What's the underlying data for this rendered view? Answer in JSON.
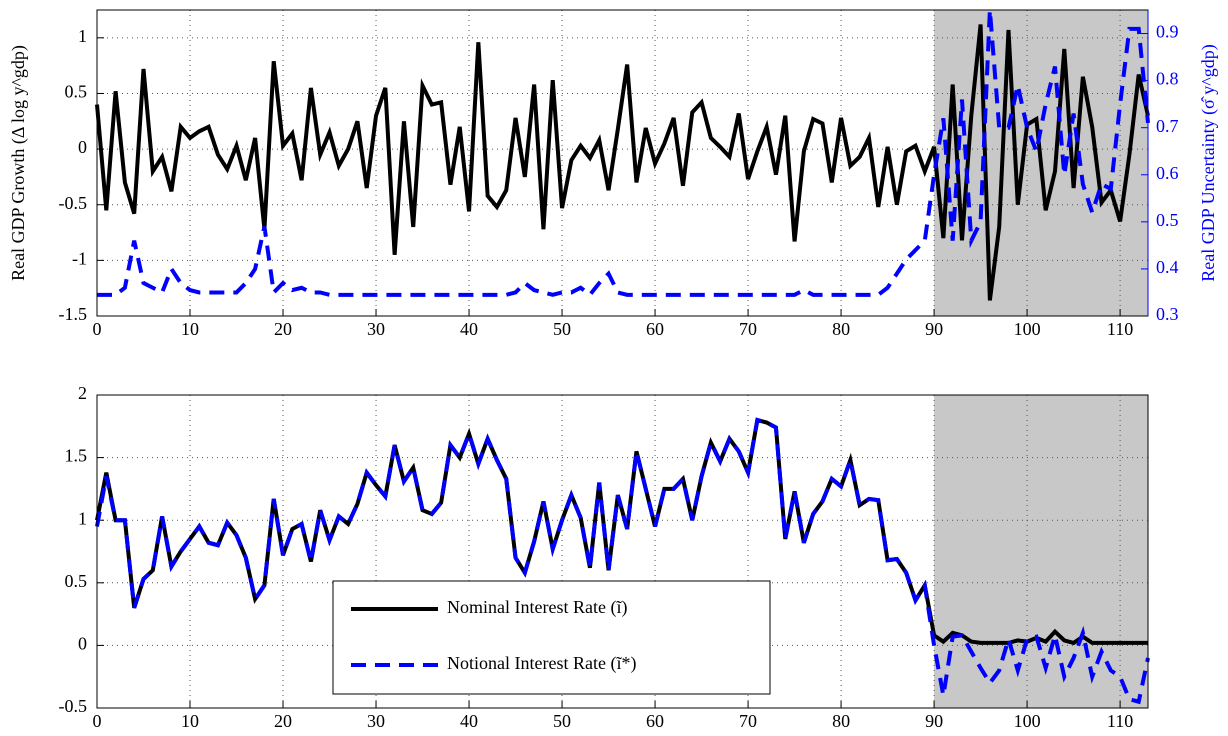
{
  "chart_data": [
    {
      "type": "line",
      "y_label": "Real GDP Growth (Δ log y^gdp)",
      "y2_label": "Real GDP Uncertainty (σ̂ y^gdp)",
      "x": [
        0,
        1,
        2,
        3,
        4,
        5,
        6,
        7,
        8,
        9,
        10,
        11,
        12,
        13,
        14,
        15,
        16,
        17,
        18,
        19,
        20,
        21,
        22,
        23,
        24,
        25,
        26,
        27,
        28,
        29,
        30,
        31,
        32,
        33,
        34,
        35,
        36,
        37,
        38,
        39,
        40,
        41,
        42,
        43,
        44,
        45,
        46,
        47,
        48,
        49,
        50,
        51,
        52,
        53,
        54,
        55,
        56,
        57,
        58,
        59,
        60,
        61,
        62,
        63,
        64,
        65,
        66,
        67,
        68,
        69,
        70,
        71,
        72,
        73,
        74,
        75,
        76,
        77,
        78,
        79,
        80,
        81,
        82,
        83,
        84,
        85,
        86,
        87,
        88,
        89,
        90,
        91,
        92,
        93,
        94,
        95,
        96,
        97,
        98,
        99,
        100,
        101,
        102,
        103,
        104,
        105,
        106,
        107,
        108,
        109,
        110,
        111,
        112,
        113
      ],
      "xlim": [
        0,
        113
      ],
      "xticks": [
        0,
        10,
        20,
        30,
        40,
        50,
        60,
        70,
        80,
        90,
        100,
        110
      ],
      "ylim": [
        -1.5,
        1.25
      ],
      "yticks": [
        -1.5,
        -1,
        -0.5,
        0,
        0.5,
        1
      ],
      "y2lim": [
        0.3,
        0.95
      ],
      "y2ticks": [
        0.3,
        0.4,
        0.5,
        0.6,
        0.7,
        0.8,
        0.9
      ],
      "y2_color": "#0000ff",
      "grid": true,
      "shaded_region": {
        "xlim": [
          90,
          113
        ],
        "color": "#c8c8c8"
      },
      "series": [
        {
          "color": "#000000",
          "dash": false,
          "values": [
            0.4,
            -0.55,
            0.52,
            -0.3,
            -0.58,
            0.72,
            -0.2,
            -0.07,
            -0.38,
            0.2,
            0.1,
            0.16,
            0.2,
            -0.05,
            -0.18,
            0.03,
            -0.28,
            0.1,
            -0.72,
            0.79,
            0.03,
            0.14,
            -0.28,
            0.55,
            -0.05,
            0.15,
            -0.15,
            0,
            0.25,
            -0.35,
            0.3,
            0.55,
            -0.95,
            0.25,
            -0.7,
            0.57,
            0.4,
            0.42,
            -0.32,
            0.2,
            -0.56,
            0.96,
            -0.42,
            -0.52,
            -0.37,
            0.28,
            -0.25,
            0.58,
            -0.72,
            0.62,
            -0.53,
            -0.1,
            0.03,
            -0.08,
            0.08,
            -0.37,
            0.18,
            0.76,
            -0.3,
            0.19,
            -0.13,
            0.05,
            0.28,
            -0.33,
            0.33,
            0.42,
            0.1,
            0.02,
            -0.07,
            0.32,
            -0.27,
            -0.02,
            0.2,
            -0.23,
            0.3,
            -0.83,
            -0.02,
            0.27,
            0.23,
            -0.3,
            0.28,
            -0.15,
            -0.07,
            0.1,
            -0.52,
            0.02,
            -0.5,
            -0.02,
            0.03,
            -0.2,
            0.02,
            -0.8,
            0.58,
            -0.82,
            0.3,
            1.12,
            -1.36,
            -0.7,
            1.07,
            -0.5,
            0.22,
            0.27,
            -0.55,
            -0.2,
            0.9,
            -0.35,
            0.65,
            0.2,
            -0.48,
            -0.37,
            -0.65,
            -0.05,
            0.67,
            0.3
          ]
        },
        {
          "color": "#0000ff",
          "dash": true,
          "axis": "y2",
          "values": [
            0.345,
            0.345,
            0.345,
            0.36,
            0.46,
            0.37,
            0.36,
            0.35,
            0.4,
            0.37,
            0.355,
            0.35,
            0.35,
            0.35,
            0.35,
            0.35,
            0.37,
            0.4,
            0.49,
            0.35,
            0.37,
            0.355,
            0.36,
            0.35,
            0.35,
            0.345,
            0.345,
            0.345,
            0.345,
            0.345,
            0.345,
            0.345,
            0.345,
            0.345,
            0.345,
            0.345,
            0.345,
            0.345,
            0.345,
            0.345,
            0.345,
            0.345,
            0.345,
            0.345,
            0.345,
            0.35,
            0.37,
            0.355,
            0.35,
            0.345,
            0.35,
            0.35,
            0.36,
            0.345,
            0.37,
            0.39,
            0.35,
            0.345,
            0.345,
            0.345,
            0.345,
            0.345,
            0.345,
            0.345,
            0.345,
            0.345,
            0.345,
            0.345,
            0.345,
            0.345,
            0.345,
            0.345,
            0.345,
            0.345,
            0.345,
            0.345,
            0.355,
            0.345,
            0.345,
            0.345,
            0.345,
            0.345,
            0.345,
            0.345,
            0.345,
            0.36,
            0.39,
            0.42,
            0.44,
            0.46,
            0.6,
            0.72,
            0.46,
            0.76,
            0.46,
            0.5,
            0.95,
            0.7,
            0.7,
            0.79,
            0.7,
            0.65,
            0.75,
            0.83,
            0.6,
            0.73,
            0.58,
            0.52,
            0.58,
            0.57,
            0.75,
            0.91,
            0.91,
            0.71
          ]
        }
      ]
    },
    {
      "type": "line",
      "x": [
        0,
        1,
        2,
        3,
        4,
        5,
        6,
        7,
        8,
        9,
        10,
        11,
        12,
        13,
        14,
        15,
        16,
        17,
        18,
        19,
        20,
        21,
        22,
        23,
        24,
        25,
        26,
        27,
        28,
        29,
        30,
        31,
        32,
        33,
        34,
        35,
        36,
        37,
        38,
        39,
        40,
        41,
        42,
        43,
        44,
        45,
        46,
        47,
        48,
        49,
        50,
        51,
        52,
        53,
        54,
        55,
        56,
        57,
        58,
        59,
        60,
        61,
        62,
        63,
        64,
        65,
        66,
        67,
        68,
        69,
        70,
        71,
        72,
        73,
        74,
        75,
        76,
        77,
        78,
        79,
        80,
        81,
        82,
        83,
        84,
        85,
        86,
        87,
        88,
        89,
        90,
        91,
        92,
        93,
        94,
        95,
        96,
        97,
        98,
        99,
        100,
        101,
        102,
        103,
        104,
        105,
        106,
        107,
        108,
        109,
        110,
        111,
        112,
        113
      ],
      "xlim": [
        0,
        113
      ],
      "xticks": [
        0,
        10,
        20,
        30,
        40,
        50,
        60,
        70,
        80,
        90,
        100,
        110
      ],
      "ylim": [
        -0.5,
        2
      ],
      "yticks": [
        -0.5,
        0,
        0.5,
        1,
        1.5,
        2
      ],
      "grid": true,
      "legend": "lower center",
      "shaded_region": {
        "xlim": [
          90,
          113
        ],
        "color": "#c8c8c8"
      },
      "series": [
        {
          "name": "Nominal Interest Rate (ĩ)",
          "color": "#000000",
          "dash": false,
          "values": [
            1.0,
            1.38,
            1.0,
            1.0,
            0.3,
            0.53,
            0.6,
            1.03,
            0.63,
            0.75,
            0.85,
            0.95,
            0.82,
            0.8,
            0.98,
            0.88,
            0.7,
            0.37,
            0.48,
            1.17,
            0.72,
            0.93,
            0.97,
            0.67,
            1.08,
            0.84,
            1.03,
            0.97,
            1.13,
            1.38,
            1.28,
            1.19,
            1.6,
            1.31,
            1.42,
            1.08,
            1.05,
            1.14,
            1.6,
            1.5,
            1.69,
            1.45,
            1.65,
            1.48,
            1.33,
            0.7,
            0.58,
            0.83,
            1.15,
            0.77,
            1.0,
            1.2,
            1.02,
            0.62,
            1.3,
            0.6,
            1.2,
            0.93,
            1.55,
            1.25,
            0.95,
            1.25,
            1.25,
            1.33,
            1.0,
            1.35,
            1.62,
            1.47,
            1.65,
            1.55,
            1.38,
            1.8,
            1.78,
            1.74,
            0.85,
            1.23,
            0.82,
            1.05,
            1.15,
            1.33,
            1.27,
            1.48,
            1.12,
            1.17,
            1.16,
            0.68,
            0.69,
            0.58,
            0.36,
            0.48,
            0.08,
            0.03,
            0.1,
            0.08,
            0.03,
            0.02,
            0.02,
            0.02,
            0.02,
            0.04,
            0.03,
            0.06,
            0.03,
            0.11,
            0.04,
            0.02,
            0.07,
            0.02,
            0.02,
            0.02,
            0.02,
            0.02,
            0.02,
            0.02
          ]
        },
        {
          "name": "Notional Interest Rate (ĩ*)",
          "color": "#0000ff",
          "dash": true,
          "values": [
            0.95,
            1.35,
            1.0,
            1.0,
            0.3,
            0.53,
            0.6,
            1.03,
            0.63,
            0.75,
            0.85,
            0.95,
            0.82,
            0.8,
            0.98,
            0.88,
            0.7,
            0.37,
            0.48,
            1.17,
            0.72,
            0.93,
            0.97,
            0.67,
            1.08,
            0.84,
            1.03,
            0.97,
            1.13,
            1.38,
            1.28,
            1.19,
            1.6,
            1.31,
            1.42,
            1.08,
            1.05,
            1.14,
            1.6,
            1.5,
            1.69,
            1.45,
            1.65,
            1.48,
            1.33,
            0.7,
            0.58,
            0.83,
            1.15,
            0.77,
            1.0,
            1.2,
            1.02,
            0.62,
            1.3,
            0.6,
            1.2,
            0.93,
            1.55,
            1.25,
            0.95,
            1.25,
            1.25,
            1.33,
            1.0,
            1.35,
            1.62,
            1.47,
            1.65,
            1.55,
            1.38,
            1.8,
            1.78,
            1.74,
            0.85,
            1.23,
            0.82,
            1.05,
            1.15,
            1.33,
            1.27,
            1.48,
            1.12,
            1.17,
            1.16,
            0.68,
            0.69,
            0.58,
            0.36,
            0.48,
            0,
            -0.4,
            0.07,
            0.08,
            -0.05,
            -0.18,
            -0.3,
            -0.2,
            0.05,
            -0.2,
            0.05,
            0.07,
            -0.18,
            0.08,
            -0.25,
            -0.1,
            0.1,
            -0.25,
            -0.05,
            -0.2,
            -0.25,
            -0.43,
            -0.45,
            -0.1
          ]
        }
      ]
    }
  ]
}
